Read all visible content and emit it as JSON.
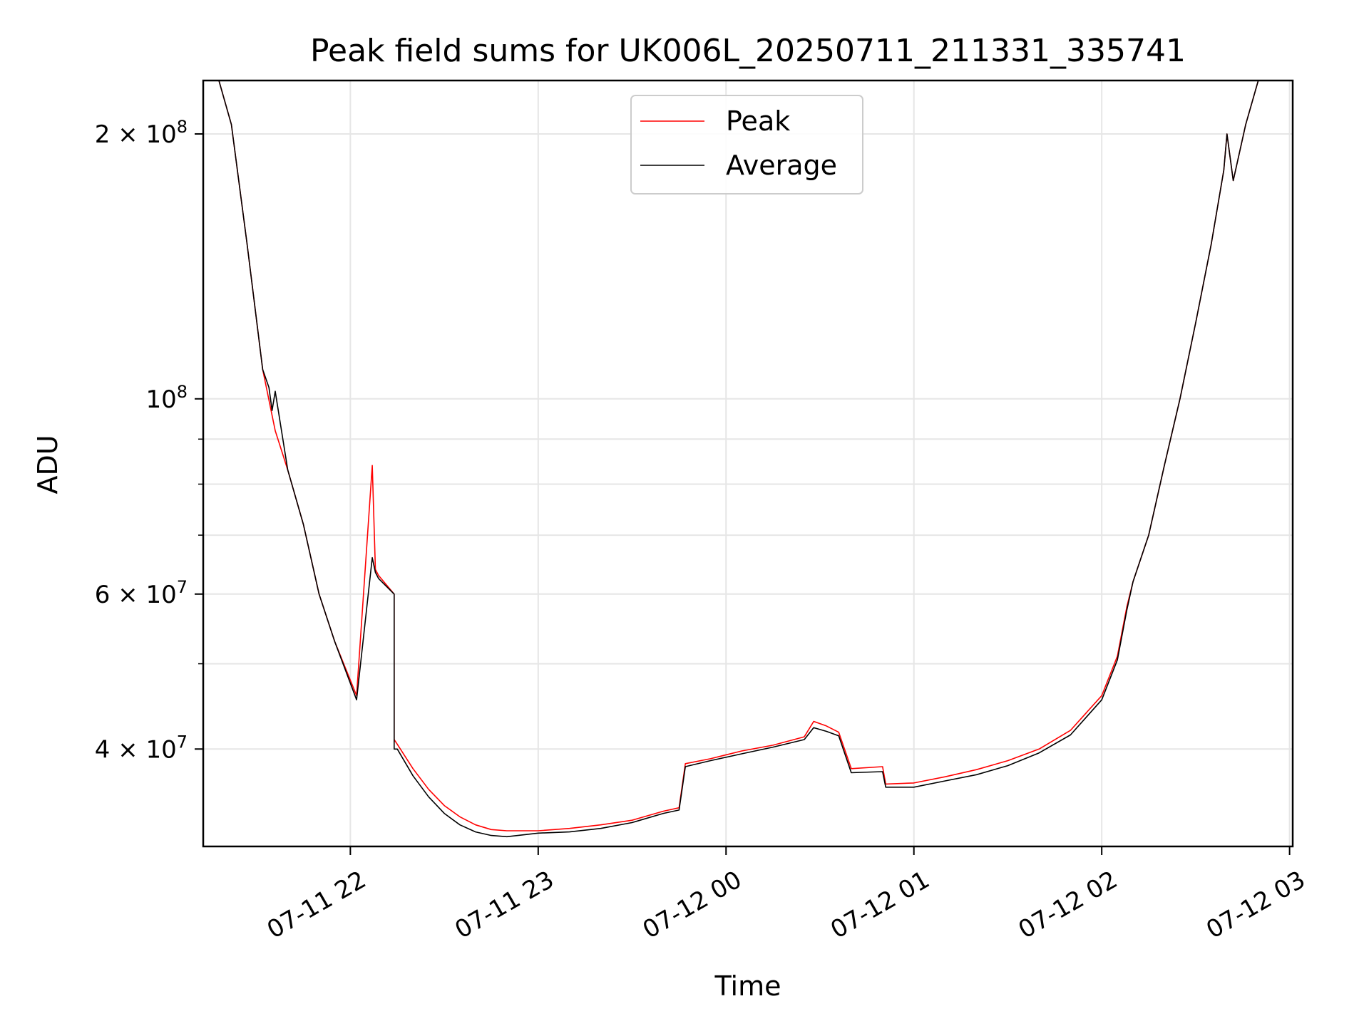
{
  "chart_data": {
    "type": "line",
    "title": "Peak field sums for UK006L_20250711_211331_335741",
    "xlabel": "Time",
    "ylabel": "ADU",
    "yscale": "log",
    "ylim": [
      31000000,
      230000000
    ],
    "xlim": [
      "2025-07-11 21:13",
      "2025-07-12 03:01"
    ],
    "grid": true,
    "legend_position": "upper center",
    "x_ticks": [
      {
        "value": "2025-07-11 22:00",
        "label": "07-11 22"
      },
      {
        "value": "2025-07-11 23:00",
        "label": "07-11 23"
      },
      {
        "value": "2025-07-12 00:00",
        "label": "07-12 00"
      },
      {
        "value": "2025-07-12 01:00",
        "label": "07-12 01"
      },
      {
        "value": "2025-07-12 02:00",
        "label": "07-12 02"
      },
      {
        "value": "2025-07-12 03:00",
        "label": "07-12 03"
      }
    ],
    "y_ticks": [
      {
        "value": 40000000,
        "mant": "4",
        "exp": "7"
      },
      {
        "value": 60000000,
        "mant": "6",
        "exp": "7"
      },
      {
        "value": 100000000,
        "mant": "",
        "exp": "8"
      },
      {
        "value": 200000000,
        "mant": "2",
        "exp": "8"
      }
    ],
    "y_minor_ticks": [
      50000000,
      70000000,
      80000000,
      90000000
    ],
    "series": [
      {
        "name": "Peak",
        "color": "#ff0000",
        "x": [
          "2025-07-11 21:13",
          "2025-07-11 21:18",
          "2025-07-11 21:22",
          "2025-07-11 21:27",
          "2025-07-11 21:32",
          "2025-07-11 21:36",
          "2025-07-11 21:40",
          "2025-07-11 21:45",
          "2025-07-11 21:50",
          "2025-07-11 21:55",
          "2025-07-11 22:02",
          "2025-07-11 22:07",
          "2025-07-11 22:08",
          "2025-07-11 22:09",
          "2025-07-11 22:14",
          "2025-07-11 22:14",
          "2025-07-11 22:15",
          "2025-07-11 22:20",
          "2025-07-11 22:25",
          "2025-07-11 22:30",
          "2025-07-11 22:35",
          "2025-07-11 22:40",
          "2025-07-11 22:45",
          "2025-07-11 22:50",
          "2025-07-11 23:00",
          "2025-07-11 23:10",
          "2025-07-11 23:20",
          "2025-07-11 23:30",
          "2025-07-11 23:40",
          "2025-07-11 23:45",
          "2025-07-11 23:47",
          "2025-07-11 23:55",
          "2025-07-12 00:05",
          "2025-07-12 00:15",
          "2025-07-12 00:25",
          "2025-07-12 00:28",
          "2025-07-12 00:32",
          "2025-07-12 00:36",
          "2025-07-12 00:40",
          "2025-07-12 00:50",
          "2025-07-12 00:51",
          "2025-07-12 01:00",
          "2025-07-12 01:10",
          "2025-07-12 01:20",
          "2025-07-12 01:30",
          "2025-07-12 01:40",
          "2025-07-12 01:50",
          "2025-07-12 02:00",
          "2025-07-12 02:05",
          "2025-07-12 02:08",
          "2025-07-12 02:10",
          "2025-07-12 02:15",
          "2025-07-12 02:20",
          "2025-07-12 02:25",
          "2025-07-12 02:30",
          "2025-07-12 02:35",
          "2025-07-12 02:39",
          "2025-07-12 02:40",
          "2025-07-12 02:42",
          "2025-07-12 02:46",
          "2025-07-12 02:50",
          "2025-07-12 02:53"
        ],
        "y": [
          230000000,
          230000000,
          205000000,
          150000000,
          108000000,
          92000000,
          83000000,
          72000000,
          60000000,
          53000000,
          46000000,
          84000000,
          64000000,
          63000000,
          60000000,
          41000000,
          40500000,
          38000000,
          36000000,
          34500000,
          33500000,
          32800000,
          32400000,
          32300000,
          32300000,
          32500000,
          32800000,
          33200000,
          34000000,
          34300000,
          38500000,
          39000000,
          39800000,
          40400000,
          41300000,
          43000000,
          42500000,
          41800000,
          38000000,
          38200000,
          36500000,
          36600000,
          37200000,
          37900000,
          38800000,
          40000000,
          42000000,
          46000000,
          51000000,
          58000000,
          62000000,
          70000000,
          84000000,
          100000000,
          122000000,
          150000000,
          182000000,
          200000000,
          177000000,
          205000000,
          230000000,
          230000000
        ]
      },
      {
        "name": "Average",
        "color": "#000000",
        "x": [
          "2025-07-11 21:13",
          "2025-07-11 21:18",
          "2025-07-11 21:22",
          "2025-07-11 21:27",
          "2025-07-11 21:32",
          "2025-07-11 21:34",
          "2025-07-11 21:35",
          "2025-07-11 21:36",
          "2025-07-11 21:40",
          "2025-07-11 21:45",
          "2025-07-11 21:50",
          "2025-07-11 21:55",
          "2025-07-11 22:02",
          "2025-07-11 22:07",
          "2025-07-11 22:08",
          "2025-07-11 22:09",
          "2025-07-11 22:14",
          "2025-07-11 22:14",
          "2025-07-11 22:15",
          "2025-07-11 22:20",
          "2025-07-11 22:25",
          "2025-07-11 22:30",
          "2025-07-11 22:35",
          "2025-07-11 22:40",
          "2025-07-11 22:45",
          "2025-07-11 22:50",
          "2025-07-11 23:00",
          "2025-07-11 23:10",
          "2025-07-11 23:20",
          "2025-07-11 23:30",
          "2025-07-11 23:40",
          "2025-07-11 23:45",
          "2025-07-11 23:47",
          "2025-07-11 23:55",
          "2025-07-12 00:05",
          "2025-07-12 00:15",
          "2025-07-12 00:25",
          "2025-07-12 00:28",
          "2025-07-12 00:32",
          "2025-07-12 00:36",
          "2025-07-12 00:40",
          "2025-07-12 00:50",
          "2025-07-12 00:51",
          "2025-07-12 01:00",
          "2025-07-12 01:10",
          "2025-07-12 01:20",
          "2025-07-12 01:30",
          "2025-07-12 01:40",
          "2025-07-12 01:50",
          "2025-07-12 02:00",
          "2025-07-12 02:05",
          "2025-07-12 02:08",
          "2025-07-12 02:10",
          "2025-07-12 02:15",
          "2025-07-12 02:20",
          "2025-07-12 02:25",
          "2025-07-12 02:30",
          "2025-07-12 02:35",
          "2025-07-12 02:39",
          "2025-07-12 02:40",
          "2025-07-12 02:42",
          "2025-07-12 02:46",
          "2025-07-12 02:50",
          "2025-07-12 02:53"
        ],
        "y": [
          230000000,
          230000000,
          205000000,
          150000000,
          108000000,
          103000000,
          97000000,
          102000000,
          83000000,
          72000000,
          60000000,
          53000000,
          45500000,
          66000000,
          63500000,
          62500000,
          60000000,
          40000000,
          40000000,
          37300000,
          35300000,
          33800000,
          32800000,
          32200000,
          31900000,
          31800000,
          32100000,
          32200000,
          32500000,
          33000000,
          33800000,
          34100000,
          38200000,
          38800000,
          39500000,
          40200000,
          41000000,
          42300000,
          41900000,
          41400000,
          37600000,
          37700000,
          36200000,
          36200000,
          36800000,
          37400000,
          38300000,
          39600000,
          41500000,
          45500000,
          50500000,
          57500000,
          62000000,
          70000000,
          84000000,
          100000000,
          122000000,
          150000000,
          182000000,
          200000000,
          177000000,
          205000000,
          230000000,
          230000000
        ]
      }
    ]
  }
}
